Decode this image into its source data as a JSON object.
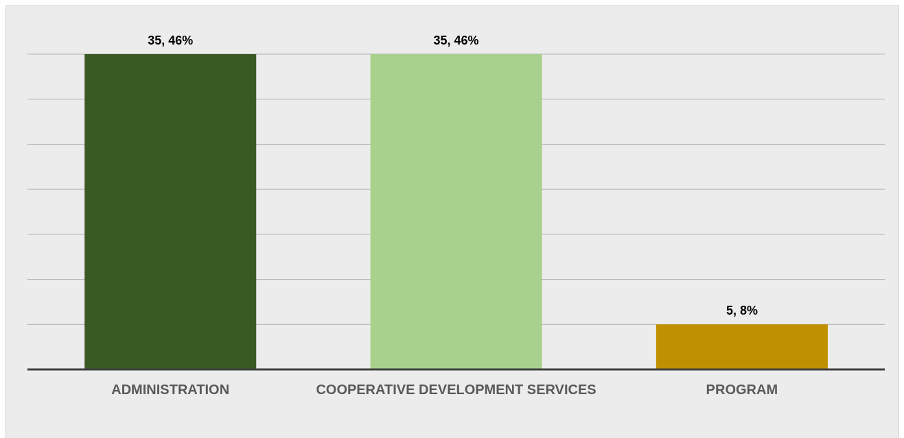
{
  "chart_data": {
    "type": "bar",
    "categories": [
      "ADMINISTRATION",
      "COOPERATIVE DEVELOPMENT SERVICES",
      "PROGRAM"
    ],
    "values": [
      35,
      35,
      5
    ],
    "colors": [
      "#3a5a24",
      "#a9d18e",
      "#bf9000"
    ],
    "value_labels": [
      "35, 46%",
      "35, 46%",
      "5, 8%"
    ],
    "grid": "y",
    "tick_labels": "x"
  }
}
